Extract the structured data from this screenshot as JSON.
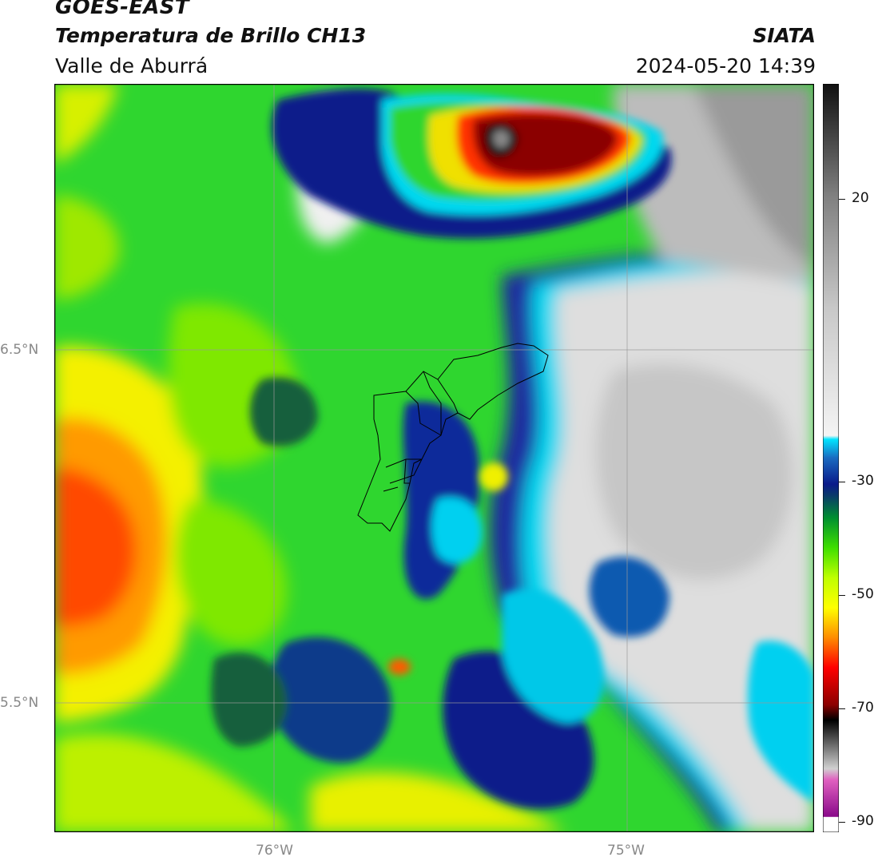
{
  "header": {
    "title": "GOES-EAST",
    "subtitle": "Temperatura de Brillo CH13",
    "region": "Valle de Aburrá",
    "brand": "SIATA",
    "datetime": "2024-05-20 14:39"
  },
  "axes": {
    "lat_labels": [
      "6.5°N",
      "5.5°N"
    ],
    "lon_labels": [
      "76°W",
      "75°W"
    ]
  },
  "colorbar": {
    "labels": [
      "20",
      "-30",
      "-50",
      "-70",
      "-90"
    ],
    "stops": [
      {
        "c": "#ffffff",
        "t": "white"
      },
      {
        "c": "#8a0a8a",
        "t": "magenta"
      },
      {
        "c": "#e060c0",
        "t": "pink"
      },
      {
        "c": "#d9d9d9",
        "t": "lightgray"
      },
      {
        "c": "#000000",
        "t": "black"
      },
      {
        "c": "#8b0000",
        "t": "darkred"
      },
      {
        "c": "#ff0000",
        "t": "red"
      },
      {
        "c": "#ff8c00",
        "t": "orange"
      },
      {
        "c": "#ffff00",
        "t": "yellow"
      },
      {
        "c": "#7fff00",
        "t": "lime"
      },
      {
        "c": "#00c000",
        "t": "green"
      },
      {
        "c": "#0a5a2a",
        "t": "darkgreen"
      },
      {
        "c": "#0a1a8a",
        "t": "navy"
      },
      {
        "c": "#1a70c0",
        "t": "blue"
      },
      {
        "c": "#00e5ff",
        "t": "cyan"
      },
      {
        "c": "#f0f0f0",
        "t": "white"
      },
      {
        "c": "#c8c8c8",
        "t": "gray"
      },
      {
        "c": "#808080",
        "t": "midgray"
      },
      {
        "c": "#101010",
        "t": "nearblack"
      }
    ]
  }
}
